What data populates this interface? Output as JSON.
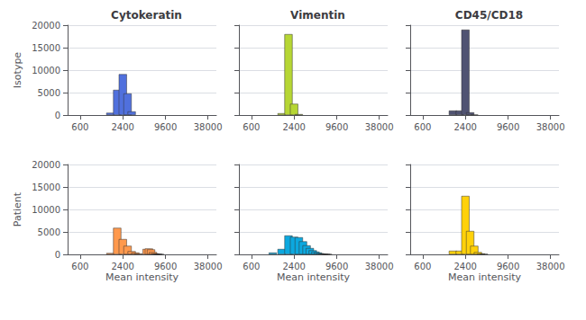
{
  "chart_data": [
    {
      "type": "bar",
      "title": "Cytokeratin",
      "ylabel": "Isotype",
      "log": "x",
      "x": [
        1600,
        2000,
        2400,
        2800,
        3200
      ],
      "values": [
        500,
        5600,
        9100,
        4800,
        800
      ],
      "xlim": [
        400,
        50000
      ],
      "xticks": [
        600,
        2400,
        9600,
        38000
      ],
      "ylim": [
        0,
        20000
      ],
      "yticks": [
        0,
        5000,
        10000,
        15000,
        20000
      ],
      "grid": true
    },
    {
      "type": "bar",
      "title": "Vimentin",
      "log": "x",
      "x": [
        1600,
        2000,
        2400,
        2800
      ],
      "values": [
        400,
        18000,
        2500,
        200
      ],
      "xlim": [
        400,
        50000
      ],
      "xticks": [
        600,
        2400,
        9600,
        38000
      ],
      "ylim": [
        0,
        20000
      ],
      "yticks": [
        0,
        5000,
        10000,
        15000,
        20000
      ],
      "grid": true,
      "tick_labels": "x"
    },
    {
      "type": "bar",
      "title": "CD45/CD18",
      "log": "x",
      "x": [
        1600,
        2000,
        2400,
        2800,
        3200
      ],
      "values": [
        1000,
        1000,
        19000,
        600,
        100
      ],
      "xlim": [
        400,
        50000
      ],
      "xticks": [
        600,
        2400,
        9600,
        38000
      ],
      "ylim": [
        0,
        20000
      ],
      "yticks": [
        0,
        5000,
        10000,
        15000,
        20000
      ],
      "grid": true,
      "tick_labels": "x"
    },
    {
      "type": "bar",
      "ylabel": "Patient",
      "xlabel": "Mean intensity",
      "log": "x",
      "x": [
        1600,
        2000,
        2400,
        2800,
        3200,
        3600,
        4000,
        5200,
        5600,
        6000,
        6400,
        6800,
        7200,
        7600,
        8000
      ],
      "values": [
        300,
        5900,
        3400,
        1900,
        700,
        400,
        200,
        1200,
        1300,
        1100,
        500,
        200,
        100,
        50,
        30
      ],
      "xlim": [
        400,
        50000
      ],
      "xticks": [
        600,
        2400,
        9600,
        38000
      ],
      "ylim": [
        0,
        20000
      ],
      "yticks": [
        0,
        5000,
        10000,
        15000,
        20000
      ],
      "grid": true
    },
    {
      "type": "bar",
      "xlabel": "Mean intensity",
      "log": "x",
      "x": [
        1200,
        1600,
        2000,
        2400,
        2800,
        3200,
        3600,
        4000,
        4400,
        4800,
        5200,
        5600,
        6000,
        6400,
        6800,
        7200
      ],
      "values": [
        400,
        1200,
        4200,
        3900,
        3800,
        2900,
        2000,
        1400,
        900,
        600,
        400,
        250,
        150,
        80,
        40,
        20
      ],
      "xlim": [
        400,
        50000
      ],
      "xticks": [
        600,
        2400,
        9600,
        38000
      ],
      "ylim": [
        0,
        20000
      ],
      "yticks": [
        0,
        5000,
        10000,
        15000,
        20000
      ],
      "grid": true,
      "tick_labels": "x"
    },
    {
      "type": "bar",
      "xlabel": "Mean intensity",
      "log": "x",
      "x": [
        1600,
        2000,
        2400,
        2800,
        3200,
        3600,
        4000,
        4400
      ],
      "values": [
        800,
        800,
        13000,
        5200,
        1900,
        500,
        200,
        100
      ],
      "xlim": [
        400,
        50000
      ],
      "xticks": [
        600,
        2400,
        9600,
        38000
      ],
      "ylim": [
        0,
        20000
      ],
      "yticks": [
        0,
        5000,
        10000,
        15000,
        20000
      ],
      "grid": true,
      "tick_labels": "x"
    }
  ]
}
